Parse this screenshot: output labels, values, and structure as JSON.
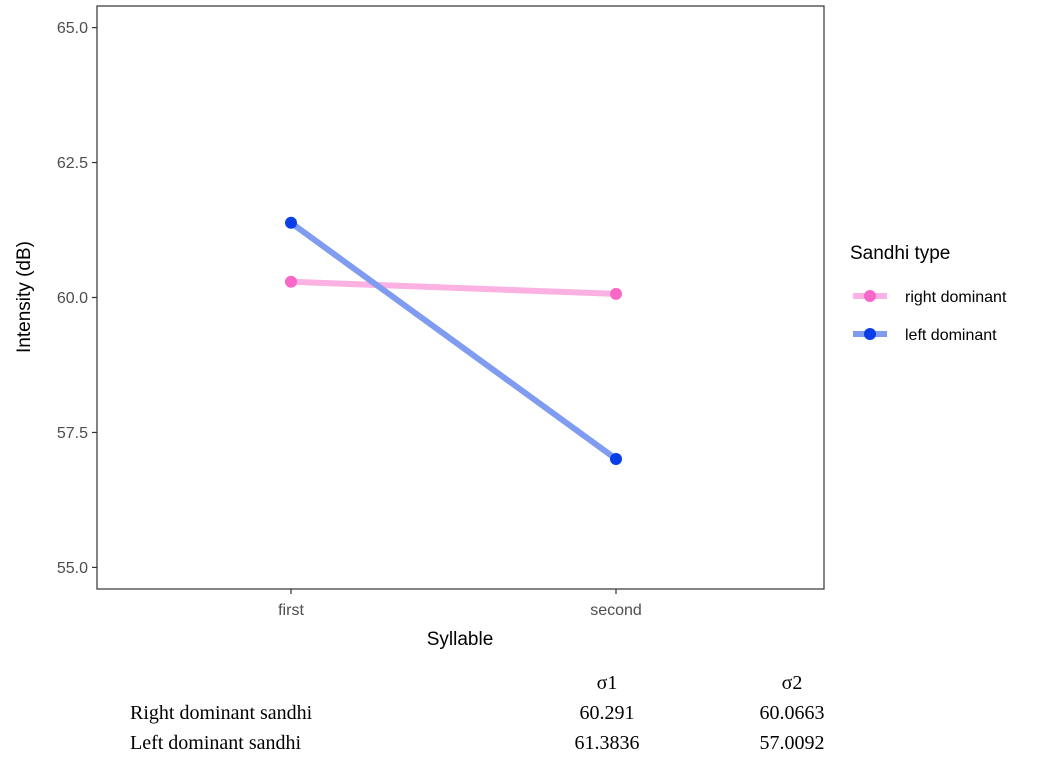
{
  "chart_data": {
    "type": "line",
    "categories": [
      "first",
      "second"
    ],
    "xlabel": "Syllable",
    "ylabel": "Intensity (dB)",
    "ylim": [
      54.6,
      65.4
    ],
    "yticks": [
      "55.0",
      "57.5",
      "60.0",
      "62.5",
      "65.0"
    ],
    "grid": false,
    "legend": {
      "title": "Sandhi type",
      "position": "right"
    },
    "series": [
      {
        "name": "right dominant",
        "values": [
          60.291,
          60.0663
        ],
        "color": "#f768c8",
        "line_color": "#fbb1e1"
      },
      {
        "name": "left dominant",
        "values": [
          61.3836,
          57.0092
        ],
        "color": "#0a3ee6",
        "line_color": "#7f9cf0"
      }
    ]
  },
  "table": {
    "headers": [
      "σ1",
      "σ2"
    ],
    "rows": [
      {
        "label": "Right dominant sandhi",
        "values": [
          "60.291",
          "60.0663"
        ]
      },
      {
        "label": "Left dominant sandhi",
        "values": [
          "61.3836",
          "57.0092"
        ]
      }
    ]
  }
}
